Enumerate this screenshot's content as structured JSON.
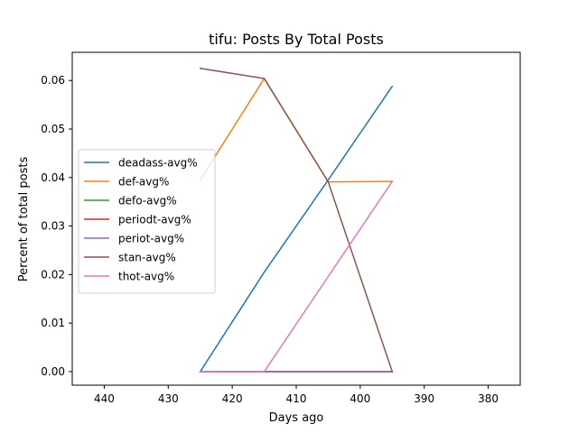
{
  "chart_data": {
    "type": "line",
    "title": "tifu: Posts By Total Posts",
    "xlabel": "Days ago",
    "ylabel": "Percent of total posts",
    "xlim": [
      445,
      375
    ],
    "ylim": [
      -0.0028,
      0.0658
    ],
    "x_inverted": true,
    "grid": false,
    "legend_position": "center-left",
    "xticks": [
      440,
      430,
      420,
      410,
      400,
      390,
      380
    ],
    "yticks": [
      0.0,
      0.01,
      0.02,
      0.03,
      0.04,
      0.05,
      0.06
    ],
    "xtick_labels": [
      "440",
      "430",
      "420",
      "410",
      "400",
      "390",
      "380"
    ],
    "ytick_labels": [
      "0.00",
      "0.01",
      "0.02",
      "0.03",
      "0.04",
      "0.05",
      "0.06"
    ],
    "x": [
      425,
      415,
      405,
      395
    ],
    "series": [
      {
        "name": "deadass-avg%",
        "color": "#1f77b4",
        "values": [
          0.0,
          0.0205,
          0.0395,
          0.0588
        ]
      },
      {
        "name": "def-avg%",
        "color": "#ff7f0e",
        "values": [
          0.0395,
          0.0604,
          0.0391,
          0.0392
        ]
      },
      {
        "name": "defo-avg%",
        "color": "#2ca02c",
        "values": [
          0.0,
          0.0,
          0.0,
          0.0
        ]
      },
      {
        "name": "periodt-avg%",
        "color": "#d62728",
        "values": [
          0.0,
          0.0,
          0.0,
          0.0
        ]
      },
      {
        "name": "periot-avg%",
        "color": "#9467bd",
        "values": [
          0.0,
          0.0,
          0.0,
          0.0
        ]
      },
      {
        "name": "stan-avg%",
        "color": "#8c564b",
        "values": [
          0.0625,
          0.0604,
          0.0391,
          0.0
        ]
      },
      {
        "name": "thot-avg%",
        "color": "#e377c2",
        "values": [
          0.0,
          0.0,
          0.0196,
          0.0392
        ]
      }
    ]
  }
}
